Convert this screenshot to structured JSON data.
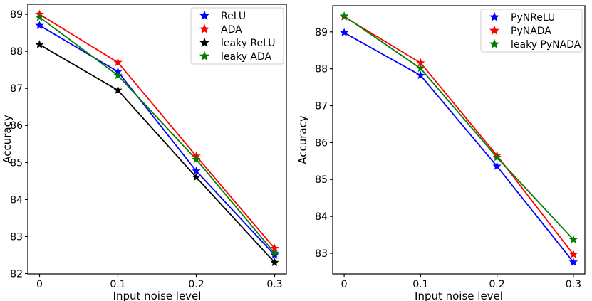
{
  "figure": {
    "background": "#ffffff",
    "description": "Two line charts of Accuracy versus Input noise level with star markers"
  },
  "chart_data": [
    {
      "id": "left-chart",
      "type": "line",
      "title": "",
      "xlabel": "Input noise level",
      "ylabel": "Accuracy",
      "marker": "star",
      "grid": false,
      "legend_position": "upper-right",
      "x": [
        0,
        0.1,
        0.2,
        0.3
      ],
      "xtick_labels": [
        "0",
        "0.1",
        "0.2",
        "0.3"
      ],
      "yticks": [
        82,
        83,
        84,
        85,
        86,
        87,
        88,
        89
      ],
      "xlim": [
        -0.015,
        0.315
      ],
      "ylim": [
        81.99,
        89.27
      ],
      "series": [
        {
          "name": "ReLU",
          "color": "#0000ff",
          "values": [
            88.7,
            87.45,
            84.77,
            82.5
          ]
        },
        {
          "name": "ADA",
          "color": "#ff0000",
          "values": [
            89.0,
            87.7,
            85.17,
            82.68
          ]
        },
        {
          "name": "leaky ReLU",
          "color": "#000000",
          "values": [
            88.18,
            86.95,
            84.6,
            82.3
          ]
        },
        {
          "name": "leaky ADA",
          "color": "#008000",
          "values": [
            88.92,
            87.35,
            85.08,
            82.55
          ]
        }
      ]
    },
    {
      "id": "right-chart",
      "type": "line",
      "title": "",
      "xlabel": "Input noise level",
      "ylabel": "Accuracy",
      "marker": "star",
      "grid": false,
      "legend_position": "upper-right",
      "x": [
        0,
        0.1,
        0.2,
        0.3
      ],
      "xtick_labels": [
        "0",
        "0.1",
        "0.2",
        "0.3"
      ],
      "yticks": [
        83,
        84,
        85,
        86,
        87,
        88,
        89
      ],
      "xlim": [
        -0.015,
        0.315
      ],
      "ylim": [
        82.44,
        89.71
      ],
      "series": [
        {
          "name": "PyNReLU",
          "color": "#0000ff",
          "values": [
            88.98,
            87.82,
            85.36,
            82.76
          ]
        },
        {
          "name": "PyNADA",
          "color": "#ff0000",
          "values": [
            89.41,
            88.16,
            85.65,
            82.97
          ]
        },
        {
          "name": "leaky PyNADA",
          "color": "#008000",
          "values": [
            89.43,
            88.01,
            85.6,
            83.37
          ]
        }
      ]
    }
  ]
}
